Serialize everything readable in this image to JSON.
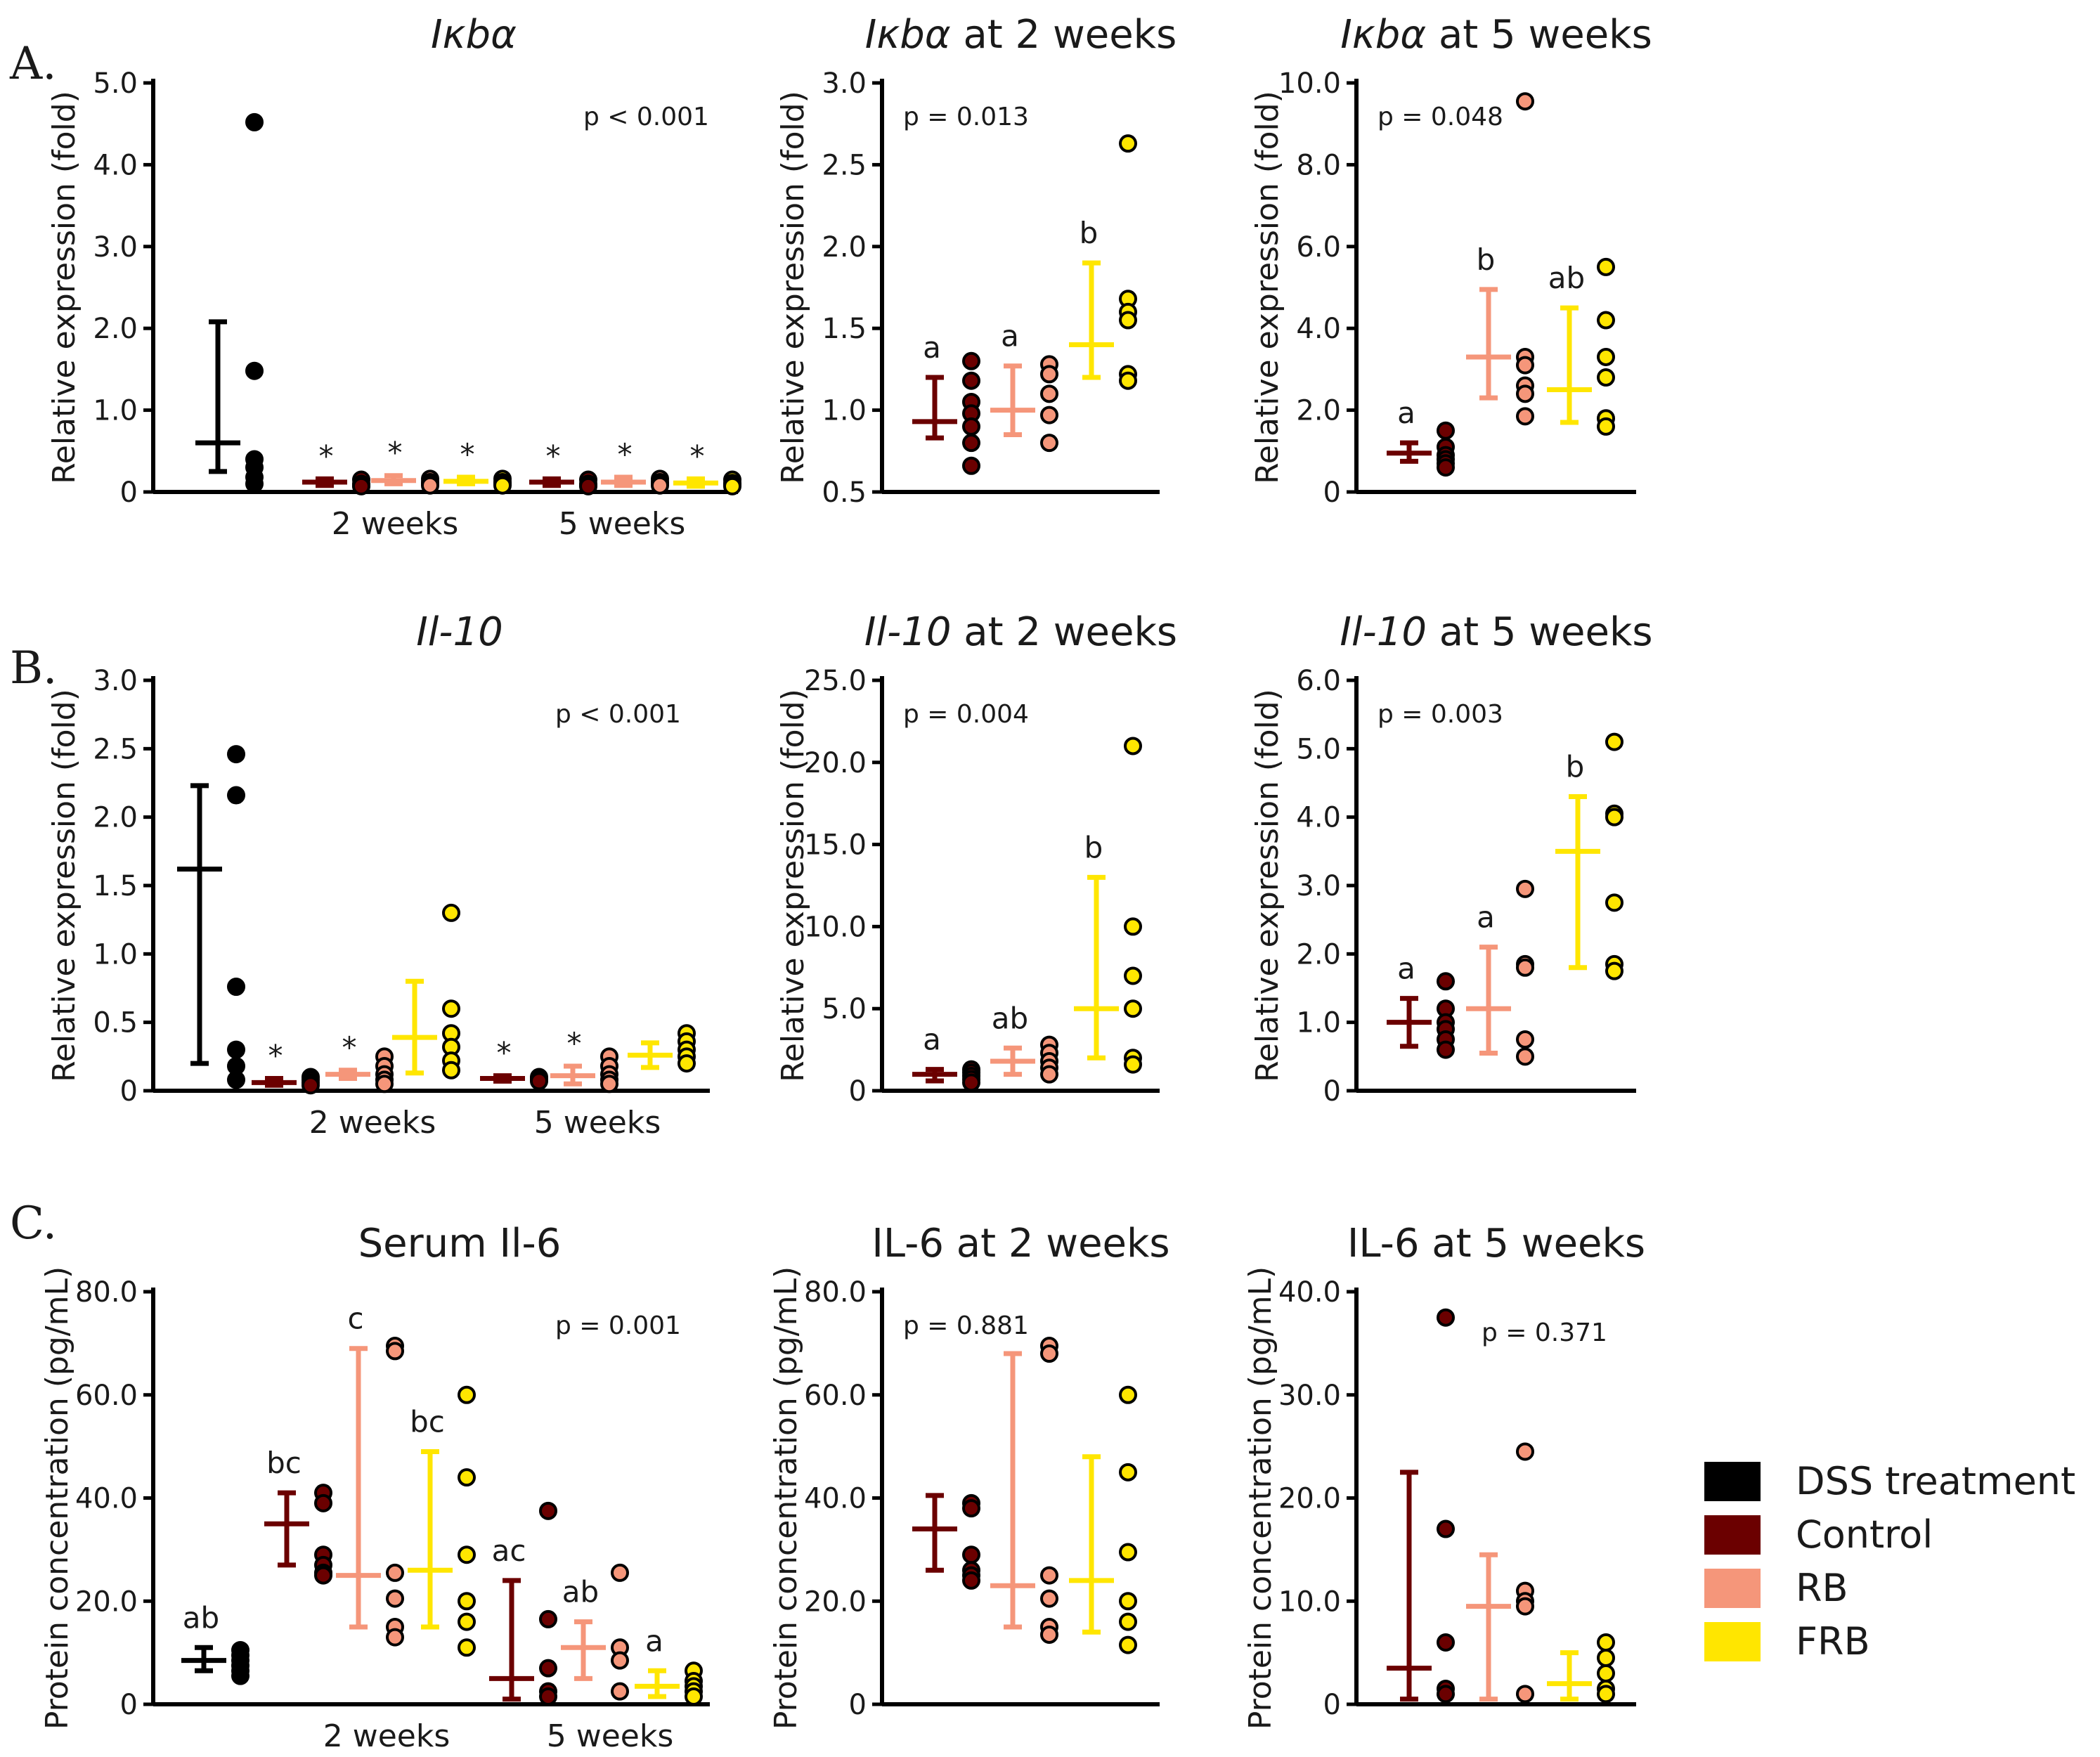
{
  "panel_labels": [
    "A.",
    "B.",
    "C."
  ],
  "colors": {
    "DSS treatment": "#000000",
    "Control": "#6b0000",
    "RB": "#f5967a",
    "FRB": "#ffe600"
  },
  "legend": [
    {
      "label": "DSS treatment",
      "color": "#000000"
    },
    {
      "label": "Control",
      "color": "#6b0000"
    },
    {
      "label": "RB",
      "color": "#f5967a"
    },
    {
      "label": "FRB",
      "color": "#ffe600"
    }
  ],
  "chart_data": [
    {
      "id": "A1",
      "type": "scatter",
      "title": "Iκbα",
      "title_italic": "Iκbα",
      "title_rest": "",
      "ylabel": "Relative expression (fold)",
      "ylim": [
        0,
        5
      ],
      "ytick_values": [
        0,
        1,
        2,
        3,
        4,
        5
      ],
      "ytick_labels": [
        "0",
        "1.0",
        "2.0",
        "3.0",
        "4.0",
        "5.0"
      ],
      "pvalue": "p < 0.001",
      "pvalue_pos": "top-right",
      "group_labels": [
        "2 weeks",
        "5 weeks"
      ],
      "groups": [
        {
          "name": "DSS treatment",
          "mean": 0.6,
          "err_low": 0.25,
          "err_high": 2.08,
          "points": [
            4.52,
            1.48,
            0.4,
            0.3,
            0.18,
            0.1
          ],
          "label": ""
        },
        {
          "name": "Control",
          "mean": 0.12,
          "err_low": 0.08,
          "err_high": 0.16,
          "points": [
            0.15,
            0.1,
            0.08,
            0.07
          ],
          "label": "*"
        },
        {
          "name": "RB",
          "mean": 0.14,
          "err_low": 0.1,
          "err_high": 0.2,
          "points": [
            0.16,
            0.12,
            0.1,
            0.08
          ],
          "label": "*"
        },
        {
          "name": "FRB",
          "mean": 0.13,
          "err_low": 0.1,
          "err_high": 0.18,
          "points": [
            0.16,
            0.12,
            0.1,
            0.08
          ],
          "label": "*"
        },
        {
          "name": "Control",
          "mean": 0.12,
          "err_low": 0.08,
          "err_high": 0.16,
          "points": [
            0.15,
            0.1,
            0.08,
            0.07
          ],
          "label": "*"
        },
        {
          "name": "RB",
          "mean": 0.12,
          "err_low": 0.08,
          "err_high": 0.18,
          "points": [
            0.16,
            0.12,
            0.1,
            0.08
          ],
          "label": "*"
        },
        {
          "name": "FRB",
          "mean": 0.11,
          "err_low": 0.07,
          "err_high": 0.16,
          "points": [
            0.15,
            0.11,
            0.09,
            0.07
          ],
          "label": "*"
        }
      ]
    },
    {
      "id": "A2",
      "type": "scatter",
      "title": "Iκbα at 2 weeks",
      "title_italic": "Iκbα",
      "title_rest": " at 2 weeks",
      "ylabel": "Relative expression (fold)",
      "ylim": [
        0.5,
        3.0
      ],
      "ytick_values": [
        0.5,
        1.0,
        1.5,
        2.0,
        2.5,
        3.0
      ],
      "ytick_labels": [
        "0.5",
        "1.0",
        "1.5",
        "2.0",
        "2.5",
        "3.0"
      ],
      "pvalue": "p = 0.013",
      "pvalue_pos": "top-left",
      "group_labels": [],
      "groups": [
        {
          "name": "Control",
          "mean": 0.93,
          "err_low": 0.83,
          "err_high": 1.2,
          "points": [
            1.3,
            1.18,
            1.05,
            0.98,
            0.9,
            0.8,
            0.66
          ],
          "label": "a"
        },
        {
          "name": "RB",
          "mean": 1.0,
          "err_low": 0.85,
          "err_high": 1.27,
          "points": [
            1.28,
            1.22,
            1.1,
            0.97,
            0.8
          ],
          "label": "a"
        },
        {
          "name": "FRB",
          "mean": 1.4,
          "err_low": 1.2,
          "err_high": 1.9,
          "points": [
            2.63,
            1.68,
            1.6,
            1.55,
            1.22,
            1.18
          ],
          "label": "b"
        }
      ]
    },
    {
      "id": "A3",
      "type": "scatter",
      "title": "Iκbα at 5 weeks",
      "title_italic": "Iκbα",
      "title_rest": " at 5 weeks",
      "ylabel": "Relative expression (fold)",
      "ylim": [
        0,
        10
      ],
      "ytick_values": [
        0,
        2,
        4,
        6,
        8,
        10
      ],
      "ytick_labels": [
        "0",
        "2.0",
        "4.0",
        "6.0",
        "8.0",
        "10.0"
      ],
      "pvalue": "p = 0.048",
      "pvalue_pos": "top-left",
      "group_labels": [],
      "groups": [
        {
          "name": "Control",
          "mean": 0.95,
          "err_low": 0.75,
          "err_high": 1.2,
          "points": [
            1.5,
            1.1,
            0.9,
            0.8,
            0.7,
            0.6
          ],
          "label": "a"
        },
        {
          "name": "RB",
          "mean": 3.3,
          "err_low": 2.3,
          "err_high": 4.95,
          "points": [
            9.55,
            3.3,
            3.1,
            2.6,
            2.4,
            1.85
          ],
          "label": "b"
        },
        {
          "name": "FRB",
          "mean": 2.5,
          "err_low": 1.7,
          "err_high": 4.5,
          "points": [
            5.5,
            4.2,
            3.3,
            2.8,
            1.8,
            1.6
          ],
          "label": "ab"
        }
      ]
    },
    {
      "id": "B1",
      "type": "scatter",
      "title": "Il-10",
      "title_italic": "Il-10",
      "title_rest": "",
      "ylabel": "Relative expression (fold)",
      "ylim": [
        0,
        3.0
      ],
      "ytick_values": [
        0,
        0.5,
        1.0,
        1.5,
        2.0,
        2.5,
        3.0
      ],
      "ytick_labels": [
        "0",
        "0.5",
        "1.0",
        "1.5",
        "2.0",
        "2.5",
        "3.0"
      ],
      "pvalue": "p < 0.001",
      "pvalue_pos": "top-right",
      "group_labels": [
        "2 weeks",
        "5 weeks"
      ],
      "groups": [
        {
          "name": "DSS treatment",
          "mean": 1.62,
          "err_low": 0.2,
          "err_high": 2.23,
          "points": [
            2.46,
            2.16,
            0.76,
            0.3,
            0.18,
            0.08
          ],
          "label": ""
        },
        {
          "name": "Control",
          "mean": 0.06,
          "err_low": 0.04,
          "err_high": 0.09,
          "points": [
            0.1,
            0.08,
            0.06,
            0.04
          ],
          "label": "*"
        },
        {
          "name": "RB",
          "mean": 0.12,
          "err_low": 0.09,
          "err_high": 0.15,
          "points": [
            0.25,
            0.18,
            0.12,
            0.08,
            0.05
          ],
          "label": "*"
        },
        {
          "name": "FRB",
          "mean": 0.39,
          "err_low": 0.13,
          "err_high": 0.8,
          "points": [
            1.3,
            0.6,
            0.42,
            0.32,
            0.22,
            0.15
          ],
          "label": ""
        },
        {
          "name": "Control",
          "mean": 0.09,
          "err_low": 0.07,
          "err_high": 0.11,
          "points": [
            0.1,
            0.09,
            0.08,
            0.07
          ],
          "label": "*"
        },
        {
          "name": "RB",
          "mean": 0.11,
          "err_low": 0.05,
          "err_high": 0.18,
          "points": [
            0.25,
            0.18,
            0.12,
            0.08,
            0.05
          ],
          "label": "*"
        },
        {
          "name": "FRB",
          "mean": 0.26,
          "err_low": 0.17,
          "err_high": 0.35,
          "points": [
            0.42,
            0.36,
            0.3,
            0.25,
            0.2
          ],
          "label": ""
        }
      ]
    },
    {
      "id": "B2",
      "type": "scatter",
      "title": "Il-10 at 2 weeks",
      "title_italic": "Il-10",
      "title_rest": " at 2 weeks",
      "ylabel": "Relative expression (fold)",
      "ylim": [
        0,
        25
      ],
      "ytick_values": [
        0,
        5,
        10,
        15,
        20,
        25
      ],
      "ytick_labels": [
        "0",
        "5.0",
        "10.0",
        "15.0",
        "20.0",
        "25.0"
      ],
      "pvalue": "p = 0.004",
      "pvalue_pos": "top-left",
      "group_labels": [],
      "groups": [
        {
          "name": "Control",
          "mean": 1.0,
          "err_low": 0.6,
          "err_high": 1.3,
          "points": [
            1.3,
            1.1,
            0.9,
            0.7,
            0.5
          ],
          "label": "a"
        },
        {
          "name": "RB",
          "mean": 1.8,
          "err_low": 1.0,
          "err_high": 2.6,
          "points": [
            2.8,
            2.3,
            1.8,
            1.4,
            1.0
          ],
          "label": "ab"
        },
        {
          "name": "FRB",
          "mean": 5.0,
          "err_low": 2.0,
          "err_high": 13.0,
          "points": [
            21.0,
            10.0,
            7.0,
            5.0,
            2.0,
            1.6
          ],
          "label": "b"
        }
      ]
    },
    {
      "id": "B3",
      "type": "scatter",
      "title": "Il-10 at 5 weeks",
      "title_italic": "Il-10",
      "title_rest": " at 5 weeks",
      "ylabel": "Relative expression (fold)",
      "ylim": [
        0,
        6.0
      ],
      "ytick_values": [
        0,
        1,
        2,
        3,
        4,
        5,
        6
      ],
      "ytick_labels": [
        "0",
        "1.0",
        "2.0",
        "3.0",
        "4.0",
        "5.0",
        "6.0"
      ],
      "pvalue": "p = 0.003",
      "pvalue_pos": "top-left",
      "group_labels": [],
      "groups": [
        {
          "name": "Control",
          "mean": 1.0,
          "err_low": 0.65,
          "err_high": 1.35,
          "points": [
            1.6,
            1.2,
            1.0,
            0.9,
            0.75,
            0.6
          ],
          "label": "a"
        },
        {
          "name": "RB",
          "mean": 1.2,
          "err_low": 0.55,
          "err_high": 2.1,
          "points": [
            2.95,
            1.85,
            1.8,
            0.75,
            0.5
          ],
          "label": "a"
        },
        {
          "name": "FRB",
          "mean": 3.5,
          "err_low": 1.8,
          "err_high": 4.3,
          "points": [
            5.1,
            4.05,
            4.0,
            2.75,
            1.85,
            1.75
          ],
          "label": "b"
        }
      ]
    },
    {
      "id": "C1",
      "type": "scatter",
      "title": "Serum Il-6",
      "title_italic": "",
      "title_rest": "Serum Il-6",
      "ylabel": "Protein concentration (pg/mL)",
      "ylim": [
        0,
        80
      ],
      "ytick_values": [
        0,
        20,
        40,
        60,
        80
      ],
      "ytick_labels": [
        "0",
        "20.0",
        "40.0",
        "60.0",
        "80.0"
      ],
      "pvalue": "p = 0.001",
      "pvalue_pos": "top-right",
      "group_labels": [
        "2 weeks",
        "5 weeks"
      ],
      "groups": [
        {
          "name": "DSS treatment",
          "mean": 8.5,
          "err_low": 6.5,
          "err_high": 11.0,
          "points": [
            10.5,
            9.5,
            8.5,
            7.5,
            6.5,
            5.5
          ],
          "label": "ab"
        },
        {
          "name": "Control",
          "mean": 35.0,
          "err_low": 27.0,
          "err_high": 41.0,
          "points": [
            41.0,
            39.0,
            29.0,
            27.0,
            25.5,
            25.0
          ],
          "label": "bc"
        },
        {
          "name": "RB",
          "mean": 25.0,
          "err_low": 15.0,
          "err_high": 69.0,
          "points": [
            69.5,
            68.5,
            25.5,
            20.5,
            15.0,
            13.0
          ],
          "label": "c"
        },
        {
          "name": "FRB",
          "mean": 26.0,
          "err_low": 15.0,
          "err_high": 49.0,
          "points": [
            60.0,
            44.0,
            29.0,
            20.0,
            16.0,
            11.0
          ],
          "label": "bc"
        },
        {
          "name": "Control",
          "mean": 5.0,
          "err_low": 1.0,
          "err_high": 24.0,
          "points": [
            37.5,
            16.5,
            7.0,
            2.5,
            1.5
          ],
          "label": "ac"
        },
        {
          "name": "RB",
          "mean": 11.0,
          "err_low": 5.0,
          "err_high": 16.0,
          "points": [
            25.5,
            11.0,
            8.5,
            2.5
          ],
          "label": "ab"
        },
        {
          "name": "FRB",
          "mean": 3.5,
          "err_low": 1.5,
          "err_high": 6.5,
          "points": [
            6.5,
            4.5,
            3.5,
            2.5,
            1.5
          ],
          "label": "a"
        }
      ]
    },
    {
      "id": "C2",
      "type": "scatter",
      "title": "IL-6 at 2 weeks",
      "title_italic": "",
      "title_rest": "IL-6 at 2 weeks",
      "ylabel": "Protein concentration (pg/mL)",
      "ylim": [
        0,
        80
      ],
      "ytick_values": [
        0,
        20,
        40,
        60,
        80
      ],
      "ytick_labels": [
        "0",
        "20.0",
        "40.0",
        "60.0",
        "80.0"
      ],
      "pvalue": "p = 0.881",
      "pvalue_pos": "top-left",
      "group_labels": [],
      "groups": [
        {
          "name": "Control",
          "mean": 34.0,
          "err_low": 26.0,
          "err_high": 40.5,
          "points": [
            39.0,
            38.0,
            29.0,
            26.0,
            25.0,
            24.0
          ],
          "label": ""
        },
        {
          "name": "RB",
          "mean": 23.0,
          "err_low": 15.0,
          "err_high": 68.0,
          "points": [
            69.5,
            68.0,
            25.0,
            20.5,
            15.0,
            13.5
          ],
          "label": ""
        },
        {
          "name": "FRB",
          "mean": 24.0,
          "err_low": 14.0,
          "err_high": 48.0,
          "points": [
            60.0,
            45.0,
            29.5,
            20.0,
            16.0,
            11.5
          ],
          "label": ""
        }
      ]
    },
    {
      "id": "C3",
      "type": "scatter",
      "title": "IL-6 at 5 weeks",
      "title_italic": "",
      "title_rest": "IL-6 at 5 weeks",
      "ylabel": "Protein concentration (pg/mL)",
      "ylim": [
        0,
        40
      ],
      "ytick_values": [
        0,
        10,
        20,
        30,
        40
      ],
      "ytick_labels": [
        "0",
        "10.0",
        "20.0",
        "30.0",
        "40.0"
      ],
      "pvalue": "p = 0.371",
      "pvalue_pos": "top-right",
      "group_labels": [],
      "groups": [
        {
          "name": "Control",
          "mean": 3.5,
          "err_low": 0.5,
          "err_high": 22.5,
          "points": [
            37.5,
            17.0,
            6.0,
            1.5,
            1.0
          ],
          "label": ""
        },
        {
          "name": "RB",
          "mean": 9.5,
          "err_low": 0.5,
          "err_high": 14.5,
          "points": [
            24.5,
            11.0,
            10.0,
            9.5,
            1.0
          ],
          "label": ""
        },
        {
          "name": "FRB",
          "mean": 2.0,
          "err_low": 0.5,
          "err_high": 5.0,
          "points": [
            6.0,
            4.5,
            3.0,
            1.5,
            1.0
          ],
          "label": ""
        }
      ]
    }
  ]
}
